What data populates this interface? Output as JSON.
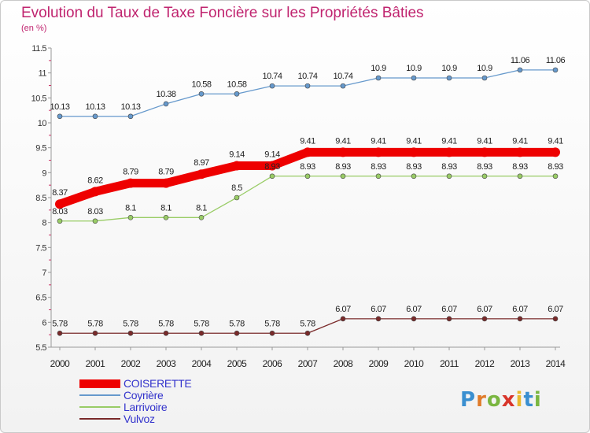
{
  "chart_data": {
    "type": "line",
    "title": "Evolution du Taux de Taxe Foncière sur les Propriétés Bâties",
    "unit_label": "(en %)",
    "x": [
      "2000",
      "2001",
      "2002",
      "2003",
      "2004",
      "2005",
      "2006",
      "2007",
      "2008",
      "2009",
      "2010",
      "2011",
      "2012",
      "2013",
      "2014"
    ],
    "yticks": [
      "5.5",
      "6",
      "6.5",
      "7",
      "7.5",
      "8",
      "8.5",
      "9",
      "9.5",
      "10",
      "10.5",
      "11",
      "11.5"
    ],
    "ylim": [
      5.5,
      11.5
    ],
    "grid": false,
    "legend_position": "bottom-left",
    "series": [
      {
        "name": "COISERETTE",
        "color": "#ee0000",
        "values": [
          8.37,
          8.62,
          8.79,
          8.79,
          8.97,
          9.14,
          9.14,
          9.41,
          9.41,
          9.41,
          9.41,
          9.41,
          9.41,
          9.41,
          9.41
        ],
        "labels": [
          "8.37",
          "8.62",
          "8.79",
          "8.79",
          "8.97",
          "9.14",
          "9.14",
          "9.41",
          "9.41",
          "9.41",
          "9.41",
          "9.41",
          "9.41",
          "9.41",
          "9.41"
        ]
      },
      {
        "name": "Coyrière",
        "color": "#6699cc",
        "values": [
          10.13,
          10.13,
          10.13,
          10.38,
          10.58,
          10.58,
          10.74,
          10.74,
          10.74,
          10.9,
          10.9,
          10.9,
          10.9,
          11.06,
          11.06
        ],
        "labels": [
          "10.13",
          "10.13",
          "10.13",
          "10.38",
          "10.58",
          "10.58",
          "10.74",
          "10.74",
          "10.74",
          "10.9",
          "10.9",
          "10.9",
          "10.9",
          "11.06",
          "11.06"
        ]
      },
      {
        "name": "Larrivoire",
        "color": "#99cc66",
        "values": [
          8.03,
          8.03,
          8.1,
          8.1,
          8.1,
          8.5,
          8.93,
          8.93,
          8.93,
          8.93,
          8.93,
          8.93,
          8.93,
          8.93,
          8.93
        ],
        "labels": [
          "8.03",
          "8.03",
          "8.1",
          "8.1",
          "8.1",
          "8.5",
          "8.93",
          "8.93",
          "8.93",
          "8.93",
          "8.93",
          "8.93",
          "8.93",
          "8.93",
          "8.93"
        ]
      },
      {
        "name": "Vulvoz",
        "color": "#7a2a2a",
        "values": [
          5.78,
          5.78,
          5.78,
          5.78,
          5.78,
          5.78,
          5.78,
          5.78,
          6.07,
          6.07,
          6.07,
          6.07,
          6.07,
          6.07,
          6.07
        ],
        "labels": [
          "5.78",
          "5.78",
          "5.78",
          "5.78",
          "5.78",
          "5.78",
          "5.78",
          "5.78",
          "6.07",
          "6.07",
          "6.07",
          "6.07",
          "6.07",
          "6.07",
          "6.07"
        ]
      }
    ]
  },
  "brand": {
    "logo_text": "Proxiti"
  }
}
